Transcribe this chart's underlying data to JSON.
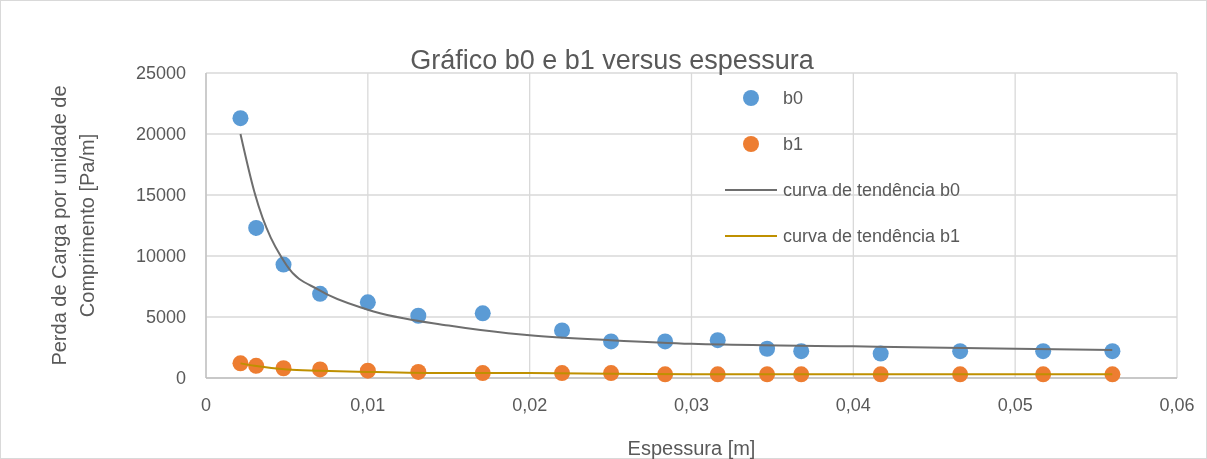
{
  "chart_data": {
    "type": "scatter",
    "title": "Gráfico b0 e b1 versus espessura",
    "xlabel": "Espessura [m]",
    "ylabel": "Perda de Carga por unidade de Comprimento [Pa/m]",
    "xlim": [
      0,
      0.06
    ],
    "ylim": [
      0,
      25000
    ],
    "xticks": [
      {
        "value": 0,
        "label": "0"
      },
      {
        "value": 0.01,
        "label": "0,01"
      },
      {
        "value": 0.02,
        "label": "0,02"
      },
      {
        "value": 0.03,
        "label": "0,03"
      },
      {
        "value": 0.04,
        "label": "0,04"
      },
      {
        "value": 0.05,
        "label": "0,05"
      },
      {
        "value": 0.06,
        "label": "0,06"
      }
    ],
    "yticks": [
      0,
      5000,
      10000,
      15000,
      20000,
      25000
    ],
    "grid": true,
    "legend": "top right",
    "series": [
      {
        "name": "b0",
        "marker": "circle",
        "color": "#5b9bd5",
        "x": [
          0.00213,
          0.0031,
          0.00479,
          0.00705,
          0.01,
          0.01312,
          0.0171,
          0.022,
          0.02503,
          0.02837,
          0.03162,
          0.03467,
          0.03678,
          0.04169,
          0.0466,
          0.05173,
          0.05601
        ],
        "values": [
          21300,
          12300,
          9300,
          6900,
          6200,
          5100,
          5300,
          3900,
          3000,
          3000,
          3100,
          2400,
          2200,
          2000,
          2200,
          2200,
          2200
        ]
      },
      {
        "name": "b1",
        "marker": "circle",
        "color": "#ed7d31",
        "x": [
          0.00213,
          0.0031,
          0.00479,
          0.00705,
          0.01,
          0.01312,
          0.0171,
          0.022,
          0.02503,
          0.02837,
          0.03162,
          0.03467,
          0.03678,
          0.04169,
          0.0466,
          0.05173,
          0.05601
        ],
        "values": [
          1200,
          1000,
          800,
          700,
          600,
          500,
          400,
          400,
          400,
          300,
          300,
          300,
          300,
          300,
          300,
          300,
          300
        ]
      },
      {
        "name": "curva de tendência b0",
        "type": "line",
        "marker": "none",
        "color": "#6e6e6e",
        "x": [
          0.00213,
          0.003,
          0.005,
          0.007,
          0.01,
          0.015,
          0.02,
          0.025,
          0.03,
          0.04,
          0.05,
          0.056
        ],
        "values": [
          20000,
          15200,
          9200,
          7200,
          5600,
          4300,
          3500,
          3100,
          2800,
          2600,
          2400,
          2300
        ]
      },
      {
        "name": "curva de tendência b1",
        "type": "line",
        "marker": "none",
        "color": "#bf9000",
        "x": [
          0.00213,
          0.003,
          0.005,
          0.007,
          0.01,
          0.015,
          0.02,
          0.03,
          0.04,
          0.056
        ],
        "values": [
          1200,
          1000,
          700,
          600,
          500,
          400,
          400,
          300,
          300,
          300
        ]
      }
    ]
  }
}
